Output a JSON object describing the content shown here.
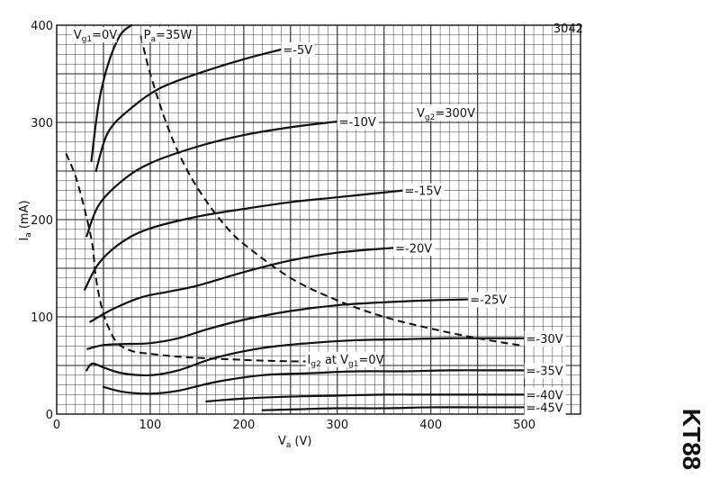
{
  "chart_data": {
    "type": "line",
    "title": "",
    "xlabel": "V",
    "xlabel_sub": "a",
    "xlabel_unit": "(V)",
    "ylabel": "I",
    "ylabel_sub": "a",
    "ylabel_unit": "(mA)",
    "xlim": [
      0,
      560
    ],
    "ylim": [
      0,
      400
    ],
    "grid": true,
    "x_ticks": [
      0,
      100,
      200,
      300,
      400,
      500
    ],
    "y_ticks": [
      0,
      100,
      200,
      300,
      400
    ],
    "vg2_label": "V",
    "vg2_sub": "g2",
    "vg2_value": "=300V",
    "corner_code": "3042",
    "series": [
      {
        "name": "V",
        "name_sub": "g1",
        "name_val": "=0V",
        "x": [
          37,
          45,
          55,
          68,
          80
        ],
        "y": [
          260,
          320,
          360,
          390,
          400
        ]
      },
      {
        "name": "=-5V",
        "x": [
          42,
          55,
          80,
          110,
          150,
          200,
          240
        ],
        "y": [
          250,
          290,
          315,
          335,
          350,
          365,
          375
        ]
      },
      {
        "name": "=-10V",
        "x": [
          32,
          45,
          70,
          100,
          150,
          200,
          250,
          300
        ],
        "y": [
          183,
          215,
          240,
          258,
          275,
          287,
          295,
          301
        ]
      },
      {
        "name": "=-15V",
        "x": [
          30,
          45,
          70,
          100,
          150,
          200,
          250,
          300,
          370
        ],
        "y": [
          128,
          155,
          177,
          191,
          203,
          211,
          218,
          223,
          230
        ]
      },
      {
        "name": "=-20V",
        "x": [
          36,
          60,
          90,
          120,
          150,
          200,
          250,
          300,
          360
        ],
        "y": [
          95,
          108,
          120,
          126,
          132,
          146,
          158,
          166,
          171
        ]
      },
      {
        "name": "=-25V",
        "x": [
          33,
          50,
          70,
          100,
          130,
          160,
          200,
          250,
          300,
          350,
          400,
          440
        ],
        "y": [
          67,
          71,
          72,
          73,
          78,
          87,
          97,
          106,
          112,
          115,
          117,
          118
        ]
      },
      {
        "name": "=-30V",
        "x": [
          32,
          38,
          50,
          70,
          100,
          130,
          170,
          220,
          270,
          320,
          370,
          420,
          470,
          500
        ],
        "y": [
          45,
          52,
          48,
          42,
          40,
          45,
          58,
          68,
          73,
          76,
          77,
          78,
          78,
          78
        ]
      },
      {
        "name": "=-35V",
        "x": [
          50,
          70,
          100,
          130,
          170,
          220,
          270,
          320,
          370,
          420,
          470,
          500
        ],
        "y": [
          28,
          23,
          21,
          24,
          33,
          40,
          42,
          44,
          44,
          45,
          45,
          45
        ]
      },
      {
        "name": "=-40V",
        "x": [
          160,
          200,
          250,
          300,
          350,
          400,
          450,
          500
        ],
        "y": [
          13,
          16,
          18,
          19,
          20,
          20,
          20,
          20
        ]
      },
      {
        "name": "=-45V",
        "x": [
          220,
          260,
          300,
          350,
          400,
          450,
          500
        ],
        "y": [
          4,
          5,
          6,
          6,
          7,
          7,
          7
        ]
      }
    ],
    "dissipation_curve": {
      "name": "P",
      "name_sub": "a",
      "name_val": "=35W",
      "x": [
        90,
        100,
        120,
        140,
        160,
        180,
        200,
        250,
        300,
        350,
        400,
        450,
        500
      ],
      "y": [
        389,
        350,
        292,
        250,
        219,
        194,
        175,
        140,
        117,
        100,
        88,
        78,
        70
      ]
    },
    "screen_curve": {
      "name": "I",
      "name_sub": "g2",
      "name_mid": " at V",
      "name_sub2": "g1",
      "name_val": "=0V",
      "x": [
        10,
        20,
        30,
        38,
        42,
        48,
        55,
        65,
        80,
        100,
        130,
        170,
        220,
        270
      ],
      "y": [
        268,
        245,
        210,
        175,
        140,
        110,
        90,
        73,
        65,
        62,
        59,
        57,
        55,
        54
      ]
    },
    "side_label": "KT88"
  }
}
